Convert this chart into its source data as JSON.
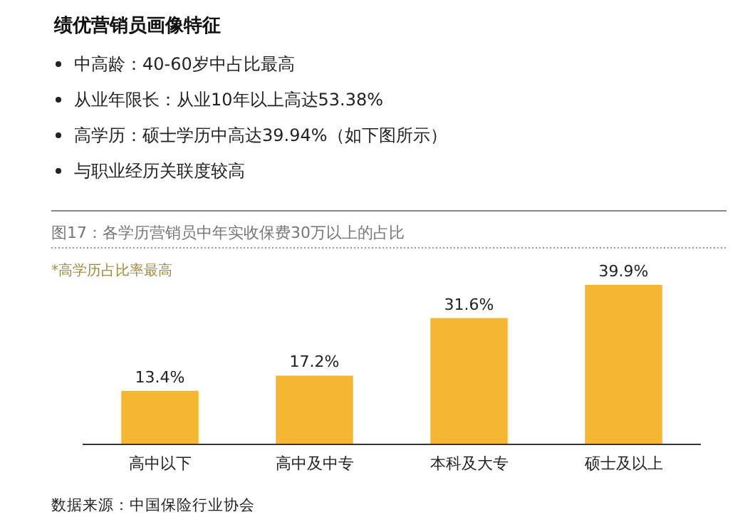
{
  "chart_data": {
    "type": "bar",
    "title": "绩优营销员画像特征",
    "subtitle": "图17：各学历营销员中年实收保费30万以上的占比",
    "annotations": [
      "中高龄：40-60岁中占比最高",
      "从业年限长：从业10年以上高达53.38%",
      "高学历：硕士学历中高达39.94%（如下图所示）",
      "与职业经历关联度较高",
      "*高学历占比率最高",
      "数据来源：中国保险行业协会"
    ],
    "categories": [
      "高中以下",
      "高中及中专",
      "本科及大专",
      "硕士及以上"
    ],
    "values": [
      13.4,
      17.2,
      31.6,
      39.9
    ],
    "value_labels": [
      "13.4%",
      "17.2%",
      "31.6%",
      "39.9%"
    ],
    "color": "#f5b731"
  }
}
